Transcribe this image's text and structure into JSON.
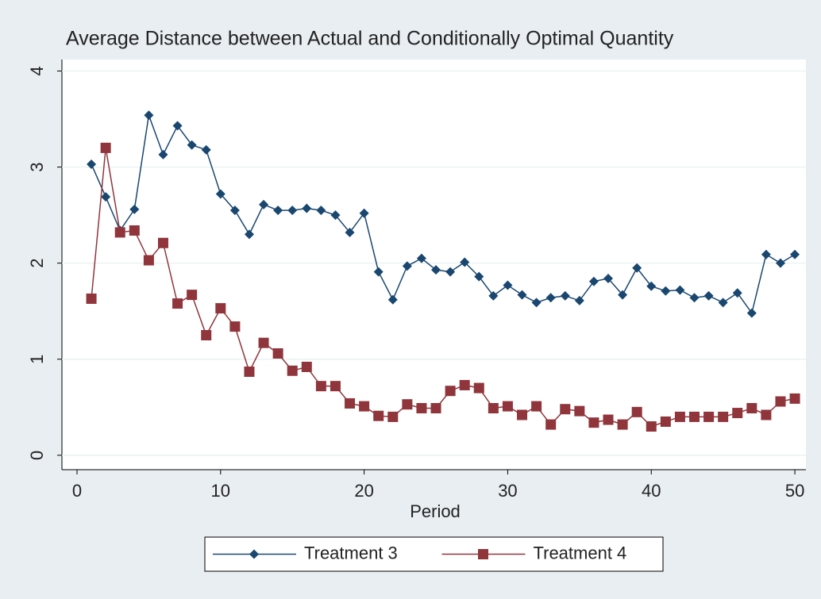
{
  "chart_data": {
    "type": "line",
    "title": "Average Distance between Actual and Conditionally Optimal Quantity",
    "x_label": "Period",
    "x": [
      1,
      2,
      3,
      4,
      5,
      6,
      7,
      8,
      9,
      10,
      11,
      12,
      13,
      14,
      15,
      16,
      17,
      18,
      19,
      20,
      21,
      22,
      23,
      24,
      25,
      26,
      27,
      28,
      29,
      30,
      31,
      32,
      33,
      34,
      35,
      36,
      37,
      38,
      39,
      40,
      41,
      42,
      43,
      44,
      45,
      46,
      47,
      48,
      49,
      50
    ],
    "series": [
      {
        "name": "Treatment 3",
        "color": "#1a476f",
        "marker": "diamond",
        "values": [
          3.03,
          2.69,
          2.34,
          2.56,
          3.54,
          3.13,
          3.43,
          3.23,
          3.18,
          2.72,
          2.55,
          2.3,
          2.61,
          2.55,
          2.55,
          2.57,
          2.55,
          2.5,
          2.32,
          2.52,
          1.91,
          1.62,
          1.97,
          2.05,
          1.93,
          1.91,
          2.01,
          1.86,
          1.66,
          1.77,
          1.67,
          1.59,
          1.64,
          1.66,
          1.61,
          1.81,
          1.84,
          1.67,
          1.95,
          1.76,
          1.71,
          1.72,
          1.64,
          1.66,
          1.59,
          1.69,
          1.48,
          2.09,
          2.0,
          2.09
        ]
      },
      {
        "name": "Treatment 4",
        "color": "#90353b",
        "marker": "square",
        "values": [
          1.63,
          3.2,
          2.32,
          2.34,
          2.03,
          2.21,
          1.58,
          1.67,
          1.25,
          1.53,
          1.34,
          0.87,
          1.17,
          1.06,
          0.88,
          0.92,
          0.72,
          0.72,
          0.54,
          0.51,
          0.41,
          0.4,
          0.53,
          0.49,
          0.49,
          0.67,
          0.73,
          0.7,
          0.49,
          0.51,
          0.42,
          0.51,
          0.32,
          0.48,
          0.46,
          0.34,
          0.37,
          0.32,
          0.45,
          0.3,
          0.35,
          0.4,
          0.4,
          0.4,
          0.4,
          0.44,
          0.49,
          0.42,
          0.56,
          0.59
        ]
      }
    ],
    "xlim": [
      -1.05,
      50.77
    ],
    "xticks": [
      0,
      10,
      20,
      30,
      40,
      50
    ],
    "ylim": [
      -0.15,
      4.12
    ],
    "yticks": [
      0,
      1,
      2,
      3,
      4
    ],
    "grid": true,
    "legend": "bottom"
  }
}
